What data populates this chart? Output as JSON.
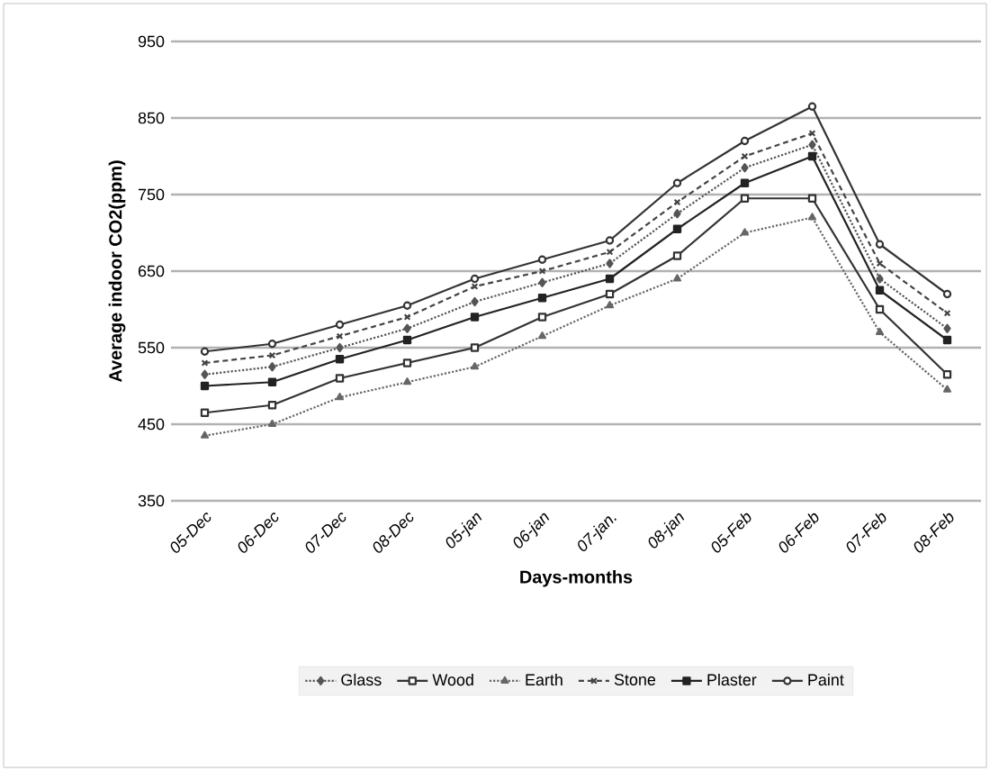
{
  "chart_data": {
    "type": "line",
    "xlabel": "Days-months",
    "ylabel": "Average indoor CO2(ppm)",
    "categories": [
      "05-Dec",
      "06-Dec",
      "07-Dec",
      "08-Dec",
      "05-jan",
      "06-jan",
      "07-jan.",
      "08-jan",
      "05-Feb",
      "06-Feb",
      "07-Feb",
      "08-Feb"
    ],
    "ylim": [
      350,
      950
    ],
    "yticks": [
      350,
      450,
      550,
      650,
      750,
      850,
      950
    ],
    "grid": "y",
    "legend": "bottom",
    "series": [
      {
        "name": "Glass",
        "color": "#555555",
        "marker": "diamond",
        "line_style": "dotted",
        "values": [
          515,
          525,
          550,
          575,
          610,
          635,
          660,
          725,
          785,
          815,
          640,
          575
        ]
      },
      {
        "name": "Wood",
        "color": "#333333",
        "marker": "square",
        "line_style": "solid",
        "values": [
          465,
          475,
          510,
          530,
          550,
          590,
          620,
          670,
          745,
          745,
          600,
          515
        ]
      },
      {
        "name": "Earth",
        "color": "#666666",
        "marker": "triangle",
        "line_style": "dotted",
        "values": [
          435,
          450,
          485,
          505,
          525,
          565,
          605,
          640,
          700,
          720,
          570,
          495
        ]
      },
      {
        "name": "Stone",
        "color": "#444444",
        "marker": "cross",
        "line_style": "dashed",
        "values": [
          530,
          540,
          565,
          590,
          630,
          650,
          675,
          740,
          800,
          830,
          660,
          595
        ]
      },
      {
        "name": "Plaster",
        "color": "#222222",
        "marker": "square",
        "line_style": "solid",
        "values": [
          500,
          505,
          535,
          560,
          590,
          615,
          640,
          705,
          765,
          800,
          625,
          560
        ]
      },
      {
        "name": "Paint",
        "color": "#333333",
        "marker": "circle",
        "line_style": "solid",
        "values": [
          545,
          555,
          580,
          605,
          640,
          665,
          690,
          765,
          820,
          865,
          685,
          620
        ]
      }
    ]
  }
}
